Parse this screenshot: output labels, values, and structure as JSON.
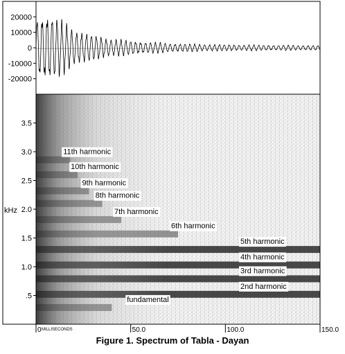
{
  "caption": "Figure 1.  Spectrum of Tabla - Dayan",
  "chart_data": [
    {
      "type": "line",
      "title": "",
      "ylim": [
        -30000,
        30000
      ],
      "xlim": [
        0,
        150
      ],
      "yticks": [
        20000,
        10000,
        0,
        -10000,
        -20000
      ],
      "ytick_labels": [
        "20000",
        "10000",
        "0",
        "-10000",
        "-20000"
      ],
      "series": [
        {
          "t": [
            0,
            5,
            10,
            15,
            20,
            25,
            30,
            40,
            50,
            60,
            75,
            90,
            105,
            120,
            135,
            150
          ],
          "amplitude": [
            22000,
            26000,
            22000,
            18000,
            14000,
            11000,
            9000,
            6500,
            5000,
            4000,
            3000,
            2500,
            2200,
            2000,
            1800,
            1700
          ]
        }
      ]
    },
    {
      "type": "heatmap",
      "xlabel": "MILLISECONDS",
      "ylabel": "kHz",
      "xlim": [
        0,
        150
      ],
      "ylim": [
        0,
        4.0
      ],
      "xticks": [
        0,
        50,
        100,
        150
      ],
      "xtick_labels": [
        "0",
        "50.0",
        "100.0",
        "150.0"
      ],
      "yticks": [
        0.5,
        1.0,
        1.5,
        2.0,
        2.5,
        3.0,
        3.5
      ],
      "ytick_labels": [
        ".5",
        "1.0",
        "1.5",
        "2.0",
        "2.5",
        "3.0",
        "3.5"
      ],
      "bands": [
        {
          "label": "fundamental",
          "freq": 0.29,
          "end_ms": 40
        },
        {
          "label": "2nd harmonic",
          "freq": 0.52,
          "end_ms": 150
        },
        {
          "label": "3rd harmonic",
          "freq": 0.79,
          "end_ms": 150
        },
        {
          "label": "4th harmonic",
          "freq": 1.03,
          "end_ms": 150
        },
        {
          "label": "5th harmonic",
          "freq": 1.3,
          "end_ms": 150
        },
        {
          "label": "6th harmonic",
          "freq": 1.57,
          "end_ms": 75
        },
        {
          "label": "7th harmonic",
          "freq": 1.82,
          "end_ms": 45
        },
        {
          "label": "8th harmonic",
          "freq": 2.1,
          "end_ms": 35
        },
        {
          "label": "9th harmonic",
          "freq": 2.32,
          "end_ms": 28
        },
        {
          "label": "10th harmonic",
          "freq": 2.6,
          "end_ms": 22
        },
        {
          "label": "11th harmonic",
          "freq": 2.86,
          "end_ms": 18
        }
      ]
    }
  ]
}
